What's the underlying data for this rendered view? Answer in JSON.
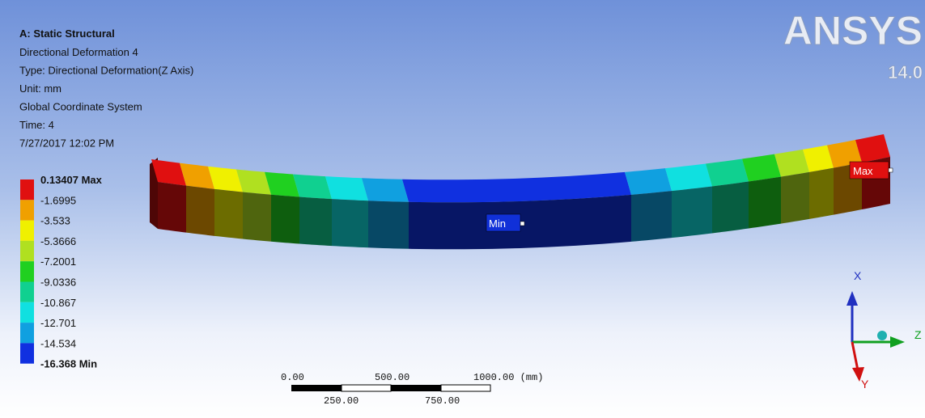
{
  "header": {
    "title": "A: Static Structural",
    "lines": [
      "Directional Deformation 4",
      "Type: Directional Deformation(Z Axis)",
      "Unit: mm",
      "Global Coordinate System",
      "Time: 4",
      "7/27/2017 12:02 PM"
    ]
  },
  "logo": {
    "brand": "ANSYS",
    "version": "14.0"
  },
  "legend": {
    "labels": [
      "0.13407 Max",
      "-1.6995",
      "-3.533",
      "-5.3666",
      "-7.2001",
      "-9.0336",
      "-10.867",
      "-12.701",
      "-14.534",
      "-16.368 Min"
    ]
  },
  "probes": {
    "min": "Min",
    "max": "Max"
  },
  "scale_bar": {
    "top": [
      "0.00",
      "500.00",
      "1000.00 (mm)"
    ],
    "bottom": [
      "250.00",
      "750.00"
    ]
  },
  "triad": {
    "x": "X",
    "y": "Y",
    "z": "Z"
  }
}
